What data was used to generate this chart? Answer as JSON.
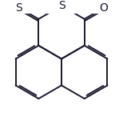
{
  "background_color": "#ffffff",
  "line_color": "#1a1a2e",
  "line_width": 1.4,
  "font_size": 10,
  "figsize": [
    1.54,
    1.51
  ],
  "dpi": 100,
  "xlim": [
    -2.0,
    2.0
  ],
  "ylim": [
    -1.8,
    2.2
  ]
}
